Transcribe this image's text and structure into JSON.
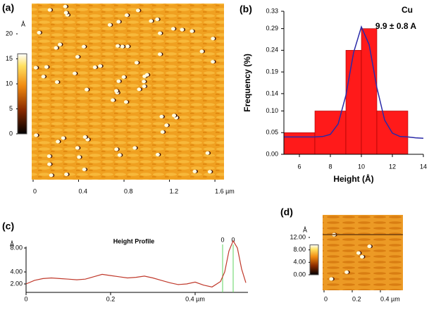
{
  "chart_data": [
    {
      "type": "image",
      "panel_label": "(a)",
      "unit": "Å",
      "cbar_lim": [
        0,
        20
      ],
      "cbar_ticks": [
        0,
        5,
        10,
        15,
        20
      ],
      "xlim": [
        0,
        1.68
      ],
      "xticks": [
        0,
        0.4,
        0.8,
        1.2,
        {
          "value": 1.6,
          "label": "1.6 µm"
        }
      ]
    },
    {
      "type": "histogram",
      "panel_label": "(b)",
      "title": "Cu",
      "subtitle": "9.9 ± 0.8 A",
      "x_label": "Height (Å)",
      "y_label": "Frequency (%)",
      "bins": [
        5,
        7,
        9,
        10,
        11,
        13
      ],
      "counts": [
        0.05,
        0.1,
        0.24,
        0.29,
        0.1
      ],
      "color": "#ff1a1a",
      "fit": {
        "color": "#2a2aa8",
        "x": [
          5,
          5.5,
          6,
          6.5,
          7,
          7.5,
          8,
          8.5,
          9,
          9.5,
          10,
          10.5,
          11,
          11.5,
          12,
          12.5,
          13,
          13.5,
          14
        ],
        "values": [
          0.04,
          0.04,
          0.04,
          0.04,
          0.04,
          0.041,
          0.046,
          0.07,
          0.136,
          0.235,
          0.294,
          0.253,
          0.154,
          0.079,
          0.049,
          0.041,
          0.04,
          0.038,
          0.037
        ]
      },
      "xlim": [
        5,
        14
      ],
      "xticks": [
        6,
        8,
        10,
        12,
        14
      ],
      "ylim": [
        0,
        0.33
      ],
      "yticks": [
        {
          "value": 0,
          "label": "0.00"
        },
        0.05,
        {
          "value": 0.1,
          "label": "0.10"
        },
        0.14,
        0.19,
        0.24,
        0.29,
        0.33
      ]
    },
    {
      "type": "line",
      "panel_label": "(c)",
      "title": "Height Profile",
      "unit": "Å",
      "color": "#c0392b",
      "x": [
        0,
        0.02,
        0.04,
        0.06,
        0.08,
        0.1,
        0.12,
        0.14,
        0.16,
        0.18,
        0.2,
        0.22,
        0.24,
        0.26,
        0.28,
        0.3,
        0.32,
        0.34,
        0.36,
        0.38,
        0.4,
        0.42,
        0.44,
        0.46,
        0.47,
        0.48,
        0.49,
        0.5,
        0.51,
        0.52
      ],
      "values": [
        2.0,
        2.6,
        2.9,
        3.0,
        2.9,
        2.8,
        2.7,
        2.8,
        3.2,
        3.6,
        3.4,
        3.2,
        3.0,
        3.1,
        3.3,
        3.0,
        2.6,
        2.2,
        1.9,
        2.0,
        2.3,
        1.8,
        1.5,
        2.4,
        4.0,
        7.5,
        9.2,
        8.0,
        4.5,
        2.2
      ],
      "cursors": [
        {
          "x": 0.465,
          "label": "0"
        },
        {
          "x": 0.49,
          "label": "0"
        }
      ],
      "cursor_color": "#5fd35f",
      "xlim": [
        0,
        0.525
      ],
      "xticks": [
        0,
        0.2,
        {
          "value": 0.4,
          "label": "0.4 µm"
        }
      ],
      "ylim": [
        0,
        10
      ],
      "yticks": [
        {
          "value": 2,
          "label": "2.00"
        },
        {
          "value": 4,
          "label": "4.00"
        },
        {
          "value": 8,
          "label": "8.00"
        }
      ]
    },
    {
      "type": "image",
      "panel_label": "(d)",
      "unit": "Å",
      "cbar_lim": [
        0,
        12
      ],
      "cbar_ticks": [
        {
          "value": 0,
          "label": "0.00"
        },
        {
          "value": 4,
          "label": "4.00"
        },
        {
          "value": 8,
          "label": "8.00"
        },
        {
          "value": 12,
          "label": "12.00"
        }
      ],
      "xlim": [
        0,
        0.56
      ],
      "xticks": [
        0,
        0.2,
        {
          "value": 0.4,
          "label": "0.4 µm"
        }
      ]
    }
  ]
}
